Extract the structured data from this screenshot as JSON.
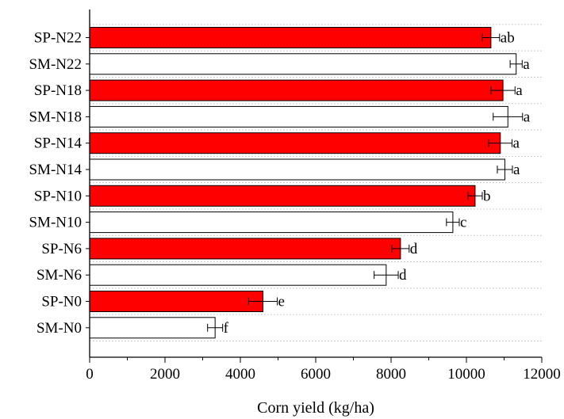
{
  "chart_data": {
    "type": "bar",
    "orientation": "horizontal",
    "title": "",
    "xlabel": "Corn yield (kg/ha)",
    "ylabel": "",
    "xlim": [
      0,
      12000
    ],
    "xticks": [
      0,
      2000,
      4000,
      6000,
      8000,
      10000,
      12000
    ],
    "grid": "horizontal dotted",
    "colors": {
      "SP": "#ff0000",
      "SM": "#ffffff",
      "outline": "#000000",
      "grid": "#bbbbbb"
    },
    "categories": [
      "SP-N22",
      "SM-N22",
      "SP-N18",
      "SM-N18",
      "SP-N14",
      "SM-N14",
      "SP-N10",
      "SM-N10",
      "SP-N6",
      "SM-N6",
      "SP-N0",
      "SM-N0"
    ],
    "values": [
      10650,
      11320,
      10970,
      11100,
      10900,
      11020,
      10230,
      9640,
      8250,
      7870,
      4600,
      3330
    ],
    "errors": [
      230,
      160,
      320,
      390,
      310,
      200,
      190,
      170,
      230,
      320,
      380,
      200
    ],
    "significance": [
      "ab",
      "a",
      "a",
      "a",
      "a",
      "a",
      "b",
      "c",
      "d",
      "d",
      "e",
      "f"
    ]
  }
}
